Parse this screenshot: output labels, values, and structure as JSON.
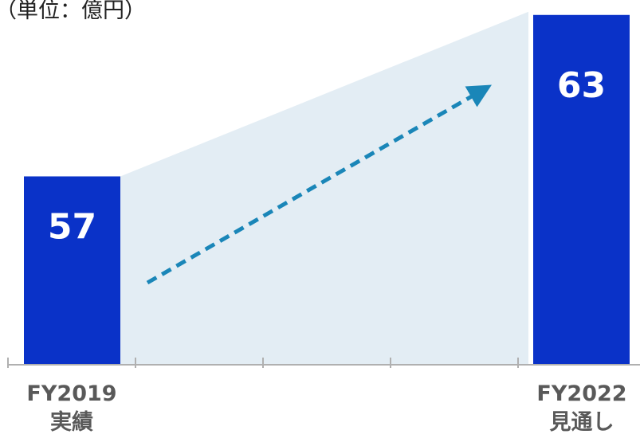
{
  "chart_data": {
    "type": "bar",
    "unit_label": "（単位：億円）",
    "categories": [
      "FY2019",
      "FY2022"
    ],
    "category_sublabels": [
      "実績",
      "見通し"
    ],
    "values": [
      57,
      63
    ],
    "value_labels": [
      "57",
      "63"
    ],
    "ylim": [
      50,
      63.2
    ],
    "grid": false,
    "trend_arrow": true,
    "colors": {
      "bar": "#0a32c8",
      "growth_band": "#e3edf4",
      "arrow": "#1a86b8",
      "axis": "#b0b0b0"
    }
  }
}
